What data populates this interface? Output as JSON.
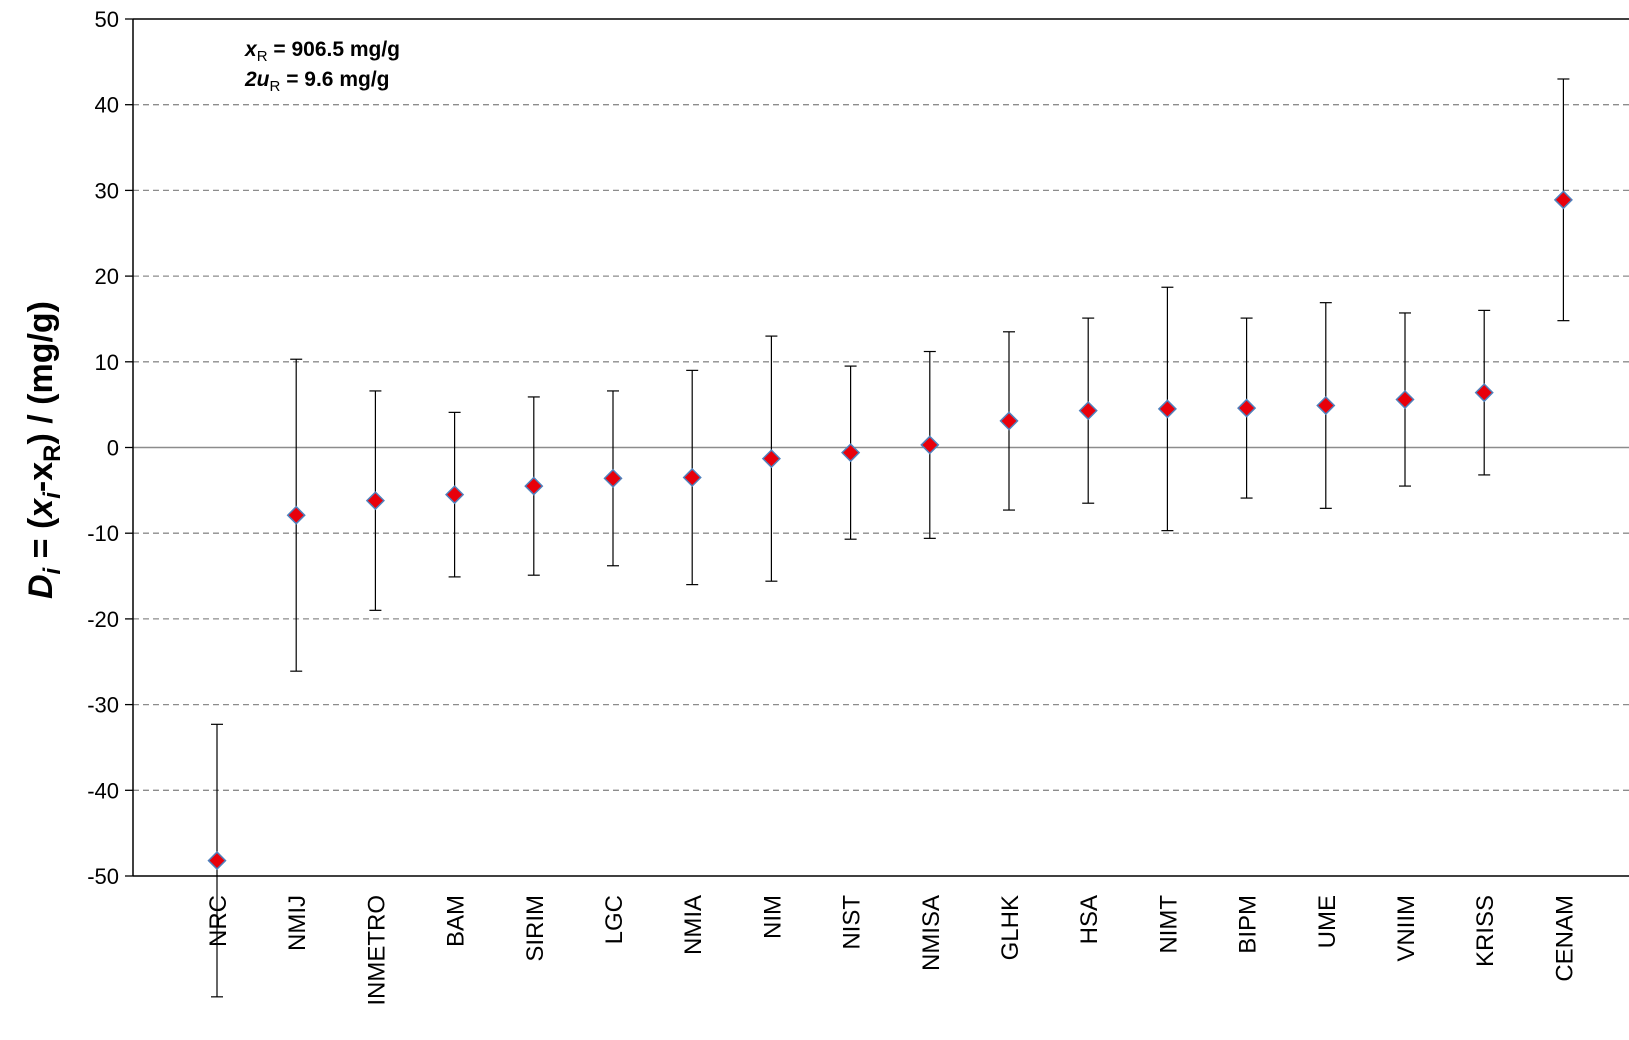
{
  "chart_data": {
    "type": "scatter",
    "ylabel": "",
    "ylabel_parts": {
      "D": "D",
      "i1": "i",
      "eq": " = (",
      "x1": "x",
      "i2": "i",
      "minus": "-",
      "x2": "x",
      "R": "R",
      "rest": ") / (mg/g)"
    },
    "annotation": {
      "line1": {
        "var": "x",
        "sub": "R",
        "text": " = 906.5 mg/g"
      },
      "line2": {
        "var": "2u",
        "sub": "R",
        "text": " = 9.6 mg/g"
      }
    },
    "ylim": [
      -50,
      50
    ],
    "yticks": [
      50,
      40,
      30,
      20,
      10,
      0,
      -10,
      -20,
      -30,
      -40,
      -50
    ],
    "grid": "horizontal dashed",
    "categories": [
      "NRC",
      "NMIJ",
      "INMETRO",
      "BAM",
      "SIRIM",
      "LGC",
      "NMIA",
      "NIM",
      "NIST",
      "NMISA",
      "GLHK",
      "HSA",
      "NIMT",
      "BIPM",
      "UME",
      "VNIIM",
      "KRISS",
      "CENAM"
    ],
    "values": [
      -48.2,
      -7.9,
      -6.2,
      -5.5,
      -4.5,
      -3.6,
      -3.5,
      -1.3,
      -0.6,
      0.3,
      3.1,
      4.3,
      4.5,
      4.6,
      4.9,
      5.6,
      6.4,
      28.9
    ],
    "error_plus": [
      15.9,
      18.2,
      12.8,
      9.6,
      10.4,
      10.2,
      12.5,
      14.3,
      10.1,
      10.9,
      10.4,
      10.8,
      14.2,
      10.5,
      12.0,
      10.1,
      9.6,
      14.1
    ],
    "error_minus": [
      15.9,
      18.2,
      12.8,
      9.6,
      10.4,
      10.2,
      12.5,
      14.3,
      10.1,
      10.9,
      10.4,
      10.8,
      14.2,
      10.5,
      12.0,
      10.1,
      9.6,
      14.1
    ],
    "colors": {
      "marker_fill": "#e8000b",
      "marker_edge": "#4f81bd",
      "grid": "#8c8c8c",
      "axis": "#000000",
      "errorbar": "#000000"
    }
  }
}
